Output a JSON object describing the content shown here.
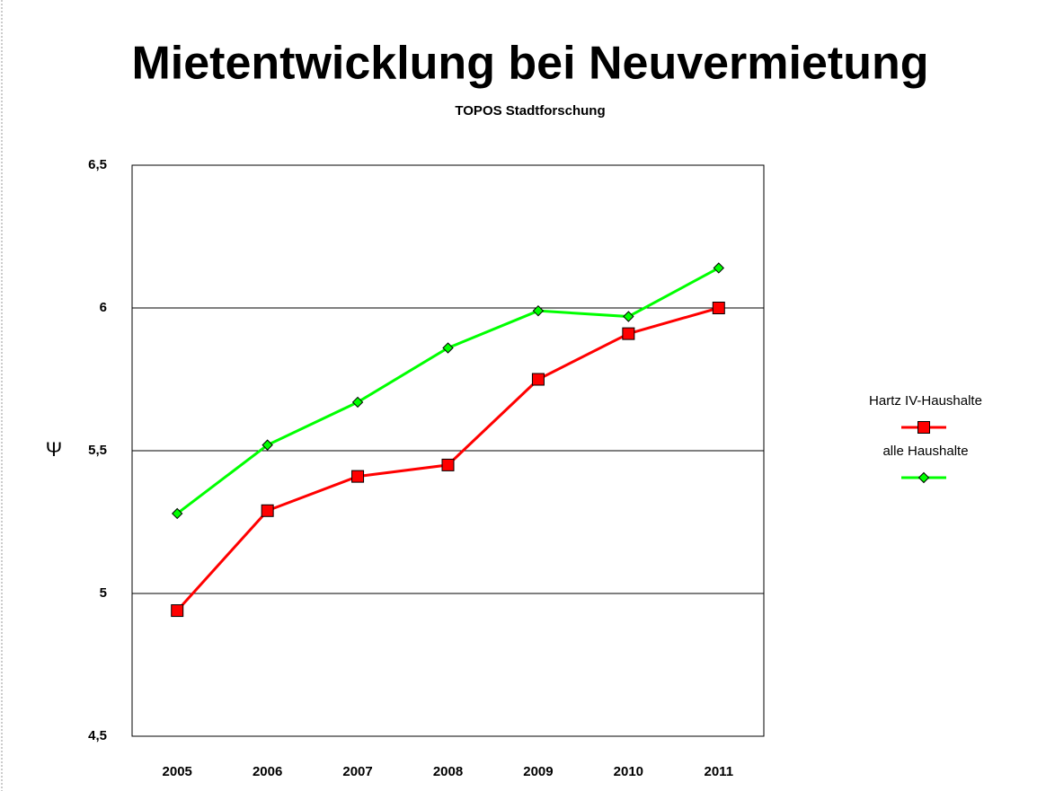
{
  "chart_data": {
    "type": "line",
    "title": "Mietentwicklung bei Neuvermietung",
    "subtitle": "TOPOS Stadtforschung",
    "y_label": "Ψ",
    "categories": [
      "2005",
      "2006",
      "2007",
      "2008",
      "2009",
      "2010",
      "2011"
    ],
    "series": [
      {
        "name": "Hartz IV-Haushalte",
        "color": "#ff0000",
        "marker": "square",
        "values": [
          4.94,
          5.29,
          5.41,
          5.45,
          5.75,
          5.91,
          6.0
        ]
      },
      {
        "name": "alle Haushalte",
        "color": "#00ff00",
        "marker": "diamond",
        "values": [
          5.28,
          5.52,
          5.67,
          5.86,
          5.99,
          5.97,
          6.14
        ]
      }
    ],
    "ylim": [
      4.5,
      6.5
    ],
    "yticks": [
      {
        "value": 4.5,
        "label": "4,5"
      },
      5,
      {
        "value": 5.5,
        "label": "5,5"
      },
      6,
      {
        "value": 6.5,
        "label": "6,5"
      }
    ],
    "grid": true,
    "legend": "right"
  }
}
